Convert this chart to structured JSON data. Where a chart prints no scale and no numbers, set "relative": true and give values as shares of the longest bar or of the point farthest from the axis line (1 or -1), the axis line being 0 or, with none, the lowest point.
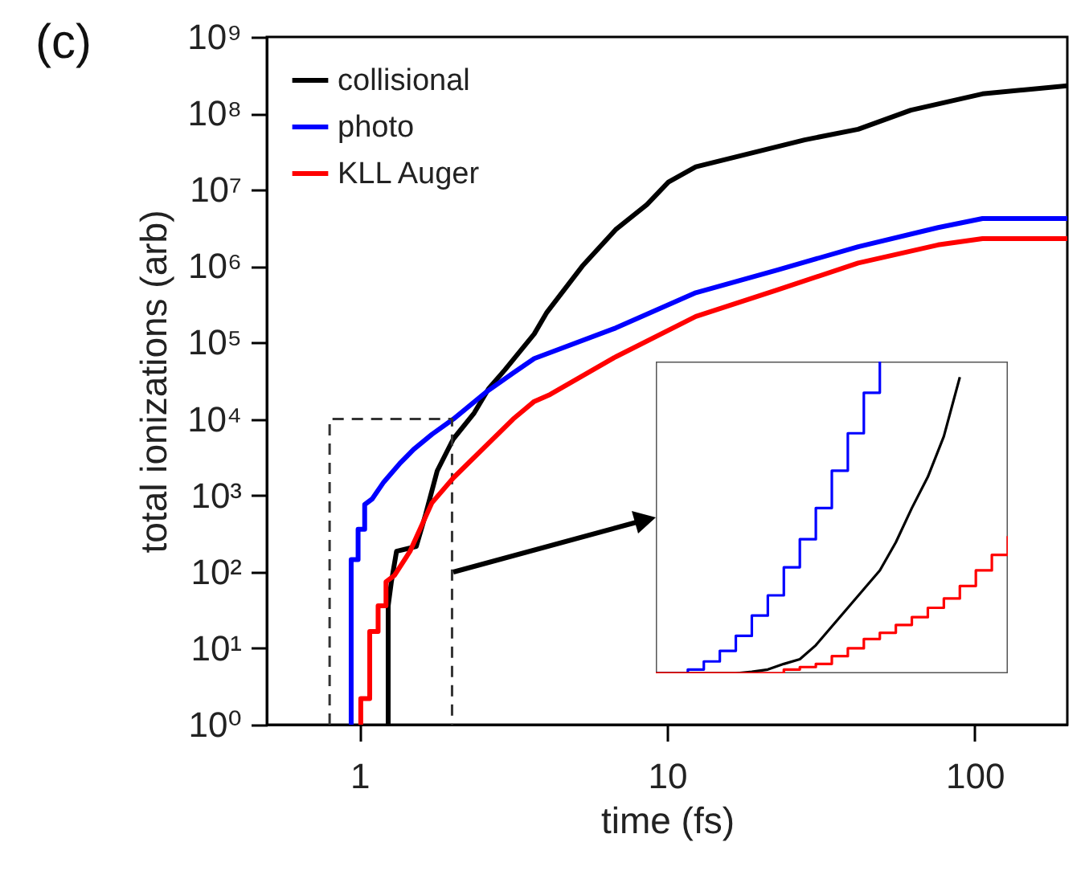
{
  "chart_data": [
    {
      "type": "line",
      "title": "(c)",
      "xlabel": "time (fs)",
      "ylabel": "total ionizations (arb)",
      "log": "xy",
      "legend": "top left",
      "xlim": [
        0.5,
        200
      ],
      "xticks": [
        1,
        10,
        100
      ],
      "ylim": [
        1,
        1000000000
      ],
      "yticks": [
        {
          "value": 1,
          "label": "10⁰"
        },
        {
          "value": 10,
          "label": "10¹"
        },
        {
          "value": 100,
          "label": "10²"
        },
        {
          "value": 1000,
          "label": "10³"
        },
        {
          "value": 10000,
          "label": "10⁴"
        },
        {
          "value": 100000,
          "label": "10⁵"
        },
        {
          "value": 1000000,
          "label": "10⁶"
        },
        {
          "value": 10000000,
          "label": "10⁷"
        },
        {
          "value": 100000000,
          "label": "10⁸"
        },
        {
          "value": 1000000000,
          "label": "10⁹"
        }
      ],
      "series": [
        {
          "name": "collisional",
          "color": "#000000",
          "x": [
            1.24,
            1.24,
            1.27,
            1.32,
            1.53,
            1.64,
            1.79,
            2.02,
            2.36,
            2.63,
            2.97,
            3.7,
            4.07,
            5.3,
            6.8,
            8.6,
            10.1,
            12.4,
            28,
            41.8,
            62,
            106,
            200
          ],
          "values": [
            1,
            36,
            74,
            186,
            215,
            560,
            2100,
            5500,
            12000,
            25000,
            44000,
            130000,
            250000,
            1000000,
            3000000,
            6400000,
            12600000,
            20000000,
            45000000,
            62000000,
            110000000,
            180000000,
            230000000
          ]
        },
        {
          "name": "photo",
          "color": "#0000ff",
          "x": [
            0.94,
            0.94,
            0.99,
            0.99,
            1.04,
            1.04,
            1.1,
            1.2,
            1.35,
            1.5,
            1.72,
            2.02,
            2.6,
            3.16,
            3.7,
            6.8,
            12.4,
            22.8,
            41.8,
            76,
            106,
            200
          ],
          "values": [
            1,
            145,
            145,
            360,
            360,
            760,
            900,
            1500,
            2600,
            4000,
            6300,
            10000,
            23000,
            40000,
            62000,
            155000,
            450000,
            890000,
            1800000,
            3200000,
            4200000,
            4200000
          ]
        },
        {
          "color": "#333333",
          "line_style": "dashed",
          "x": [
            0.8,
            0.8,
            2,
            2
          ],
          "values": [
            1,
            10000,
            10000,
            1
          ]
        },
        {
          "name": "KLL Auger",
          "color": "#ff0000",
          "x": [
            1.01,
            1.01,
            1.08,
            1.08,
            1.15,
            1.15,
            1.22,
            1.22,
            1.3,
            1.46,
            1.72,
            2.02,
            3.16,
            3.7,
            4.17,
            6.8,
            12.4,
            22.8,
            41.8,
            76,
            106,
            200
          ],
          "values": [
            1,
            2.2,
            2.2,
            16.6,
            16.6,
            36,
            36,
            74,
            90,
            186,
            800,
            1700,
            10000,
            17000,
            21000,
            65000,
            220000,
            490000,
            1100000,
            1900000,
            2300000,
            2300000
          ]
        }
      ]
    },
    {
      "type": "step",
      "relative": true,
      "tick_labels": false,
      "categories": [
        null,
        null,
        null,
        null,
        null,
        null,
        null,
        null,
        null,
        null,
        null,
        null,
        null,
        null,
        null,
        null,
        null,
        null,
        null,
        null,
        null,
        null,
        null
      ],
      "series": [
        {
          "color": "#0000ff",
          "values": [
            0,
            0,
            0.012,
            0.038,
            0.072,
            0.12,
            0.185,
            0.25,
            0.34,
            0.43,
            0.53,
            0.65,
            0.77,
            0.9,
            1.0,
            null,
            null,
            null,
            null,
            null,
            null,
            null,
            null
          ]
        },
        {
          "color": "#000000",
          "type": "line",
          "values": [
            0,
            0,
            0,
            0,
            0,
            0,
            0.005,
            0.012,
            0.03,
            0.045,
            0.09,
            0.15,
            0.21,
            0.27,
            0.33,
            0.42,
            0.53,
            0.63,
            0.76,
            0.95,
            null,
            null,
            null
          ]
        },
        {
          "color": "#ff0000",
          "values": [
            0,
            0,
            0,
            0,
            0,
            0,
            0,
            0,
            0.012,
            0.02,
            0.03,
            0.055,
            0.08,
            0.11,
            0.13,
            0.155,
            0.18,
            0.21,
            0.24,
            0.28,
            0.33,
            0.38,
            0.44
          ]
        }
      ]
    }
  ]
}
